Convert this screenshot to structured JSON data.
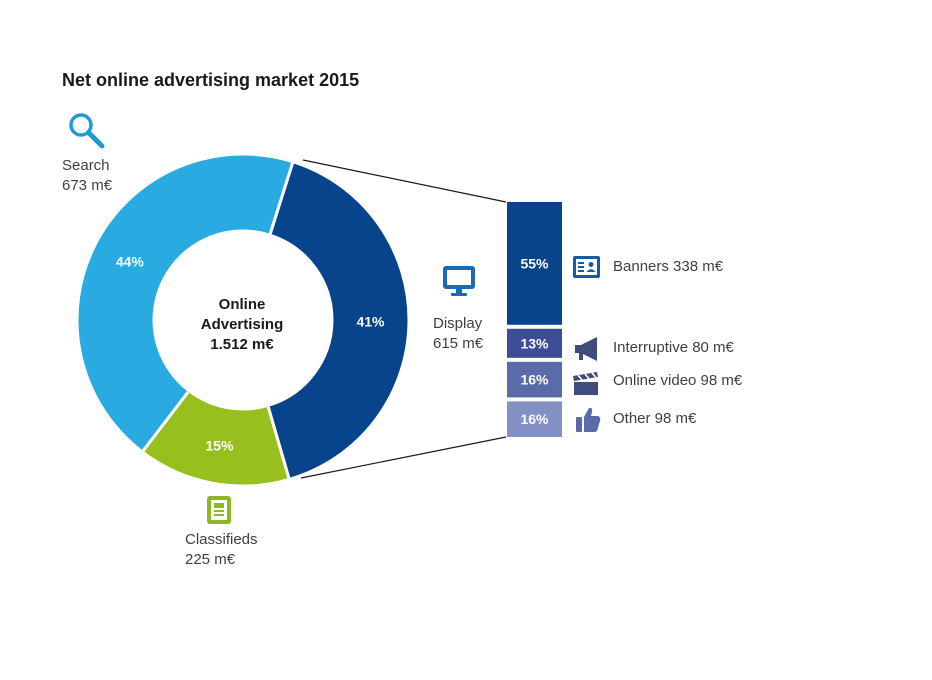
{
  "title": "Net online advertising market 2015",
  "center": {
    "line1": "Online",
    "line2": "Advertising",
    "line3": "1.512 m€"
  },
  "colors": {
    "search": "#29abe2",
    "display": "#07448c",
    "classifieds": "#97bf1e",
    "banners": "#07448c",
    "interruptive": "#3b4e96",
    "online_video": "#5b6aa8",
    "other": "#8290c3",
    "icon_blue": "#1a6bb4",
    "icon_navy": "#404b7e",
    "icon_green": "#8cb820"
  },
  "labels": {
    "search": {
      "name": "Search",
      "amount": "673 m€",
      "icon": "search-icon"
    },
    "display": {
      "name": "Display",
      "amount": "615 m€",
      "icon": "monitor-icon"
    },
    "classifieds": {
      "name": "Classifieds",
      "amount": "225 m€",
      "icon": "document-icon"
    }
  },
  "legend": [
    {
      "label": "Banners 338 m€",
      "icon": "id-card-icon"
    },
    {
      "label": "Interruptive 80 m€",
      "icon": "megaphone-icon"
    },
    {
      "label": "Online video 98 m€",
      "icon": "clapperboard-icon"
    },
    {
      "label": "Other 98 m€",
      "icon": "thumbs-up-icon"
    }
  ],
  "chart_data": [
    {
      "type": "pie",
      "title": "Net online advertising market 2015",
      "categories": [
        "Search",
        "Display",
        "Classifieds"
      ],
      "values": [
        673,
        615,
        225
      ],
      "percent_labels": [
        "44%",
        "41%",
        "15%"
      ],
      "total": "1.512 m€"
    },
    {
      "type": "bar",
      "stacked": true,
      "categories": [
        "Banners",
        "Interruptive",
        "Online video",
        "Other"
      ],
      "values": [
        338,
        80,
        98,
        98
      ],
      "percent_labels": [
        "55%",
        "13%",
        "16%",
        "16%"
      ]
    }
  ]
}
